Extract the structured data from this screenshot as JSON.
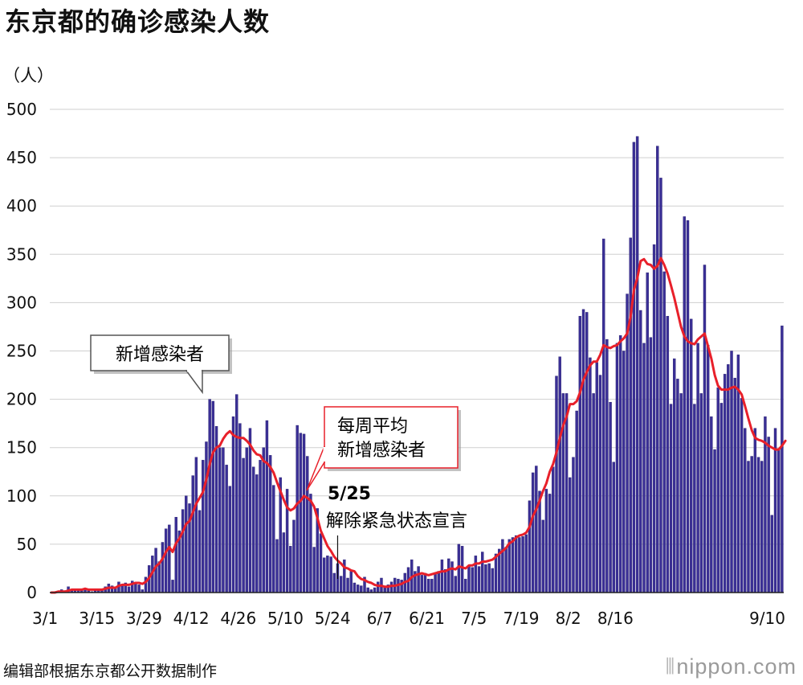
{
  "title": "东京都的确诊感染人数",
  "source_note": "编辑部根据东京都公开数据制作",
  "brand": {
    "text": "nippon",
    "suffix": ".com"
  },
  "colors": {
    "bars": "#3a2f96",
    "bar_edge": "#2a2170",
    "average_line": "#e8202a",
    "grid": "#cfcfcf",
    "callout_red_border": "#e8202a",
    "callout_gray_border": "#555555"
  },
  "chart_data": {
    "type": "bar",
    "unit_label": "（人）",
    "ylim": [
      0,
      500
    ],
    "yticks": [
      0,
      50,
      100,
      150,
      200,
      250,
      300,
      350,
      400,
      450,
      500
    ],
    "xticks": [
      "3/1",
      "3/15",
      "3/29",
      "4/12",
      "4/26",
      "5/10",
      "5/24",
      "6/7",
      "6/21",
      "7/5",
      "7/19",
      "8/2",
      "8/16",
      "9/10"
    ],
    "x_start": "3/1",
    "x_end": "9/10",
    "series": [
      {
        "name": "新增感染者",
        "type": "bar",
        "values": [
          0,
          0,
          1,
          3,
          2,
          6,
          3,
          3,
          4,
          3,
          4,
          2,
          1,
          4,
          4,
          3,
          6,
          9,
          7,
          5,
          11,
          7,
          10,
          6,
          12,
          10,
          8,
          3,
          16,
          28,
          38,
          46,
          32,
          52,
          66,
          70,
          13,
          78,
          64,
          86,
          100,
          92,
          121,
          140,
          85,
          137,
          156,
          200,
          198,
          172,
          150,
          150,
          132,
          110,
          182,
          205,
          175,
          139,
          150,
          170,
          130,
          122,
          137,
          150,
          178,
          142,
          111,
          55,
          119,
          62,
          107,
          48,
          75,
          173,
          165,
          164,
          141,
          102,
          47,
          87,
          61,
          36,
          38,
          37,
          20,
          30,
          17,
          34,
          15,
          22,
          10,
          8,
          7,
          16,
          5,
          3,
          5,
          11,
          15,
          5,
          8,
          11,
          15,
          14,
          13,
          20,
          26,
          34,
          22,
          27,
          18,
          20,
          14,
          14,
          19,
          22,
          34,
          24,
          35,
          32,
          17,
          50,
          48,
          14,
          28,
          26,
          38,
          27,
          42,
          29,
          30,
          25,
          40,
          45,
          55,
          47,
          55,
          57,
          59,
          57,
          58,
          60,
          95,
          124,
          131,
          105,
          75,
          107,
          102,
          130,
          224,
          244,
          206,
          206,
          119,
          140,
          188,
          286,
          293,
          290,
          243,
          206,
          238,
          225,
          366,
          262,
          197,
          135,
          258,
          266,
          250,
          309,
          367,
          466,
          472,
          292,
          258,
          331,
          264,
          360,
          462,
          429,
          332,
          286,
          195,
          242,
          221,
          206,
          389,
          385,
          283,
          195,
          258,
          206,
          339,
          256,
          182,
          148,
          212,
          196,
          226,
          236,
          250,
          222,
          246,
          201,
          170,
          136,
          141,
          170,
          140,
          136,
          182,
          161,
          80,
          170,
          149,
          276
        ]
      },
      {
        "name": "每周平均新增感染者",
        "type": "line",
        "values": [
          0,
          0,
          1,
          1,
          1,
          2,
          3,
          3,
          3,
          3,
          4,
          3,
          3,
          3,
          3,
          3,
          4,
          5,
          5,
          5,
          7,
          8,
          8,
          8,
          9,
          10,
          10,
          9,
          11,
          15,
          21,
          27,
          30,
          35,
          42,
          47,
          42,
          51,
          56,
          63,
          71,
          74,
          83,
          92,
          98,
          104,
          117,
          133,
          145,
          150,
          152,
          159,
          164,
          167,
          163,
          161,
          160,
          160,
          157,
          153,
          147,
          143,
          142,
          136,
          134,
          130,
          124,
          114,
          105,
          96,
          88,
          85,
          87,
          92,
          95,
          100,
          98,
          95,
          89,
          77,
          64,
          56,
          48,
          43,
          37,
          33,
          30,
          26,
          25,
          23,
          22,
          17,
          14,
          13,
          11,
          10,
          8,
          7,
          7,
          6,
          6,
          7,
          7,
          8,
          9,
          11,
          12,
          16,
          18,
          19,
          20,
          19,
          18,
          19,
          20,
          21,
          22,
          22,
          24,
          25,
          24,
          27,
          26,
          25,
          28,
          28,
          30,
          30,
          32,
          32,
          33,
          34,
          37,
          40,
          43,
          46,
          51,
          53,
          57,
          59,
          60,
          62,
          68,
          79,
          86,
          95,
          105,
          113,
          125,
          133,
          145,
          160,
          173,
          182,
          195,
          195,
          198,
          207,
          220,
          228,
          235,
          239,
          239,
          246,
          256,
          254,
          253,
          255,
          256,
          260,
          263,
          268,
          285,
          313,
          325,
          343,
          345,
          340,
          339,
          335,
          338,
          346,
          339,
          330,
          318,
          305,
          290,
          275,
          265,
          260,
          258,
          257,
          262,
          265,
          268,
          255,
          242,
          225,
          214,
          210,
          210,
          210,
          212,
          213,
          210,
          205,
          193,
          180,
          168,
          160,
          158,
          157,
          155,
          152,
          150,
          148,
          148,
          152,
          157
        ]
      }
    ],
    "annotations": [
      {
        "text_line1": "新增感染者",
        "target_index": 47
      },
      {
        "text_line1": "每周平均",
        "text_line2": "新增感染者",
        "target_index": 80
      },
      {
        "date_label": "5/25",
        "text": "解除紧急状态宣言",
        "target_index": 85
      }
    ]
  }
}
